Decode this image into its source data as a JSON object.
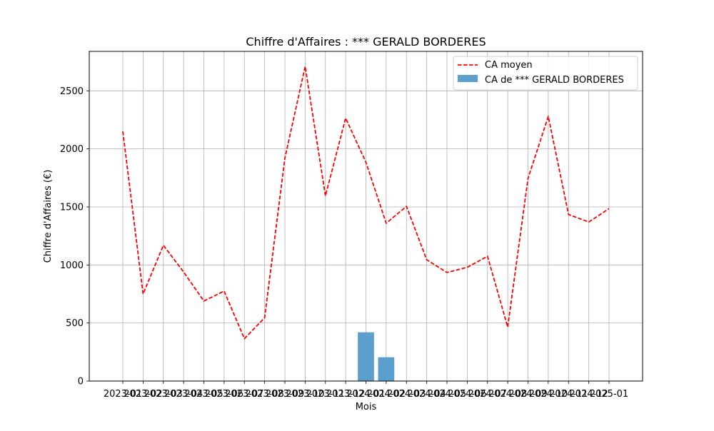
{
  "chart_data": {
    "type": "bar",
    "title": "Chiffre d'Affaires : *** GERALD BORDERES",
    "xlabel": "Mois",
    "ylabel": "Chiffre d'Affaires (€)",
    "ylim": [
      0,
      2840
    ],
    "yticks": [
      0,
      500,
      1000,
      1500,
      2000,
      2500
    ],
    "grid": true,
    "legend_position": "top-right",
    "categories": [
      "2023-01",
      "2023-02",
      "2023-03",
      "2023-04",
      "2023-05",
      "2023-06",
      "2023-07",
      "2023-08",
      "2023-09",
      "2023-10",
      "2023-11",
      "2023-12",
      "2024-01",
      "2024-02",
      "2024-03",
      "2024-04",
      "2024-05",
      "2024-06",
      "2024-07",
      "2024-08",
      "2024-09",
      "2024-10",
      "2024-11",
      "2024-12",
      "2025-01"
    ],
    "series": [
      {
        "name": "CA moyen",
        "type": "line",
        "style": "dashed",
        "color": "#ff0000",
        "values": [
          2150,
          750,
          1170,
          940,
          690,
          775,
          365,
          545,
          1920,
          2710,
          1595,
          2265,
          1885,
          1360,
          1505,
          1045,
          935,
          980,
          1075,
          465,
          1745,
          2280,
          1435,
          1370,
          1485
        ]
      },
      {
        "name": "CA de *** GERALD BORDERES",
        "type": "bar",
        "color": "#5b9fcc",
        "values": [
          null,
          null,
          null,
          null,
          null,
          null,
          null,
          null,
          null,
          null,
          null,
          null,
          420,
          205,
          null,
          null,
          null,
          null,
          null,
          null,
          null,
          null,
          null,
          null,
          null
        ]
      }
    ]
  }
}
